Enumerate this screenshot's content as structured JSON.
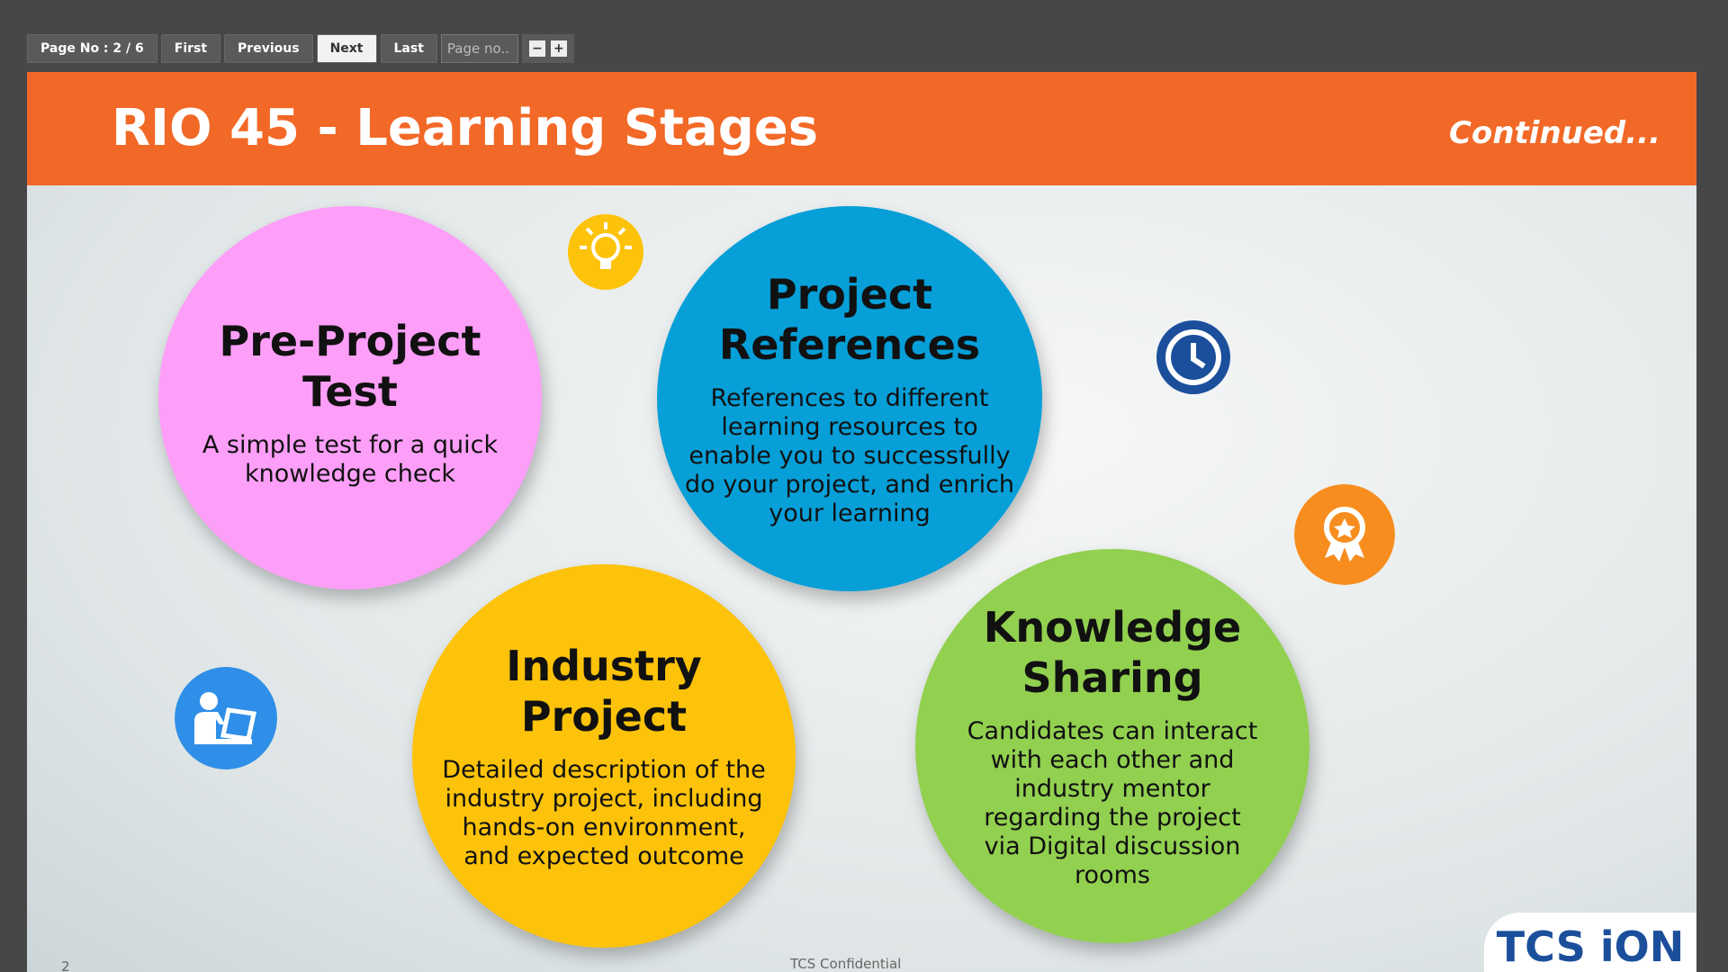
{
  "toolbar": {
    "page_label": "Page No : 2 / 6",
    "buttons": [
      "First",
      "Previous",
      "Next",
      "Last"
    ],
    "page_input_placeholder": "Page no..",
    "zoom": [
      "−",
      "+"
    ]
  },
  "slide": {
    "title": "RIO 45 - Learning Stages",
    "subtitle": "Continued...",
    "stages": [
      {
        "title": "Pre-Project Test",
        "description": "A simple test for a quick knowledge check"
      },
      {
        "title": "Project References",
        "description": "References to different learning resources to enable you to successfully do your project, and enrich your learning"
      },
      {
        "title": "Industry Project",
        "description": "Detailed description of the industry project, including hands-on environment, and expected outcome"
      },
      {
        "title": "Knowledge Sharing",
        "description": "Candidates can interact with each other and industry mentor regarding the project via Digital discussion rooms"
      }
    ],
    "footer": {
      "page_number": "2",
      "confidential": "TCS Confidential",
      "logo": "TCS iON"
    }
  }
}
